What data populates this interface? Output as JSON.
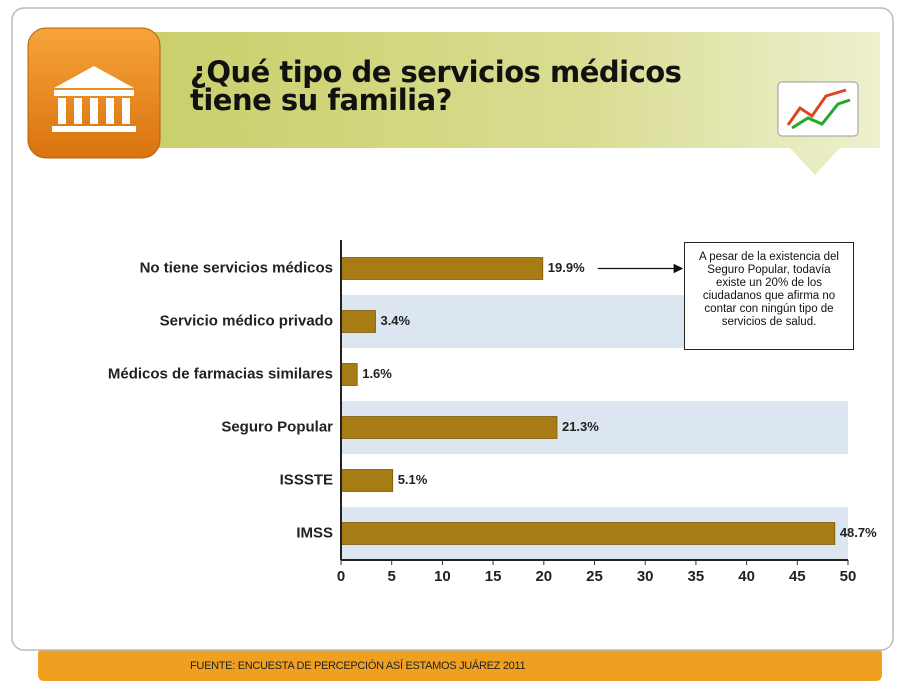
{
  "chart_data": {
    "type": "barh",
    "title": "¿Qué tipo de servicios médicos tiene su familia?",
    "categories": [
      "No tiene servicios médicos",
      "Servicio médico privado",
      "Médicos de farmacias similares",
      "Seguro Popular",
      "ISSSTE",
      "IMSS"
    ],
    "values": [
      19.9,
      3.4,
      1.6,
      21.3,
      5.1,
      48.7
    ],
    "value_labels": [
      "19.9%",
      "3.4%",
      "1.6%",
      "21.3%",
      "5.1%",
      "48.7%"
    ],
    "color": "#a87c14",
    "xlim": [
      0,
      50
    ],
    "xticks": [
      0,
      5,
      10,
      15,
      20,
      25,
      30,
      35,
      40,
      45,
      50
    ],
    "annotation": "A pesar de la existencia del Seguro Popular, todavía existe un 20% de los ciudadanos que afirma no contar con ningún tipo de servicios de salud.",
    "source": "FUENTE: ENCUESTA DE PERCEPCIÓN ASÍ ESTAMOS JUÁREZ 2011"
  }
}
